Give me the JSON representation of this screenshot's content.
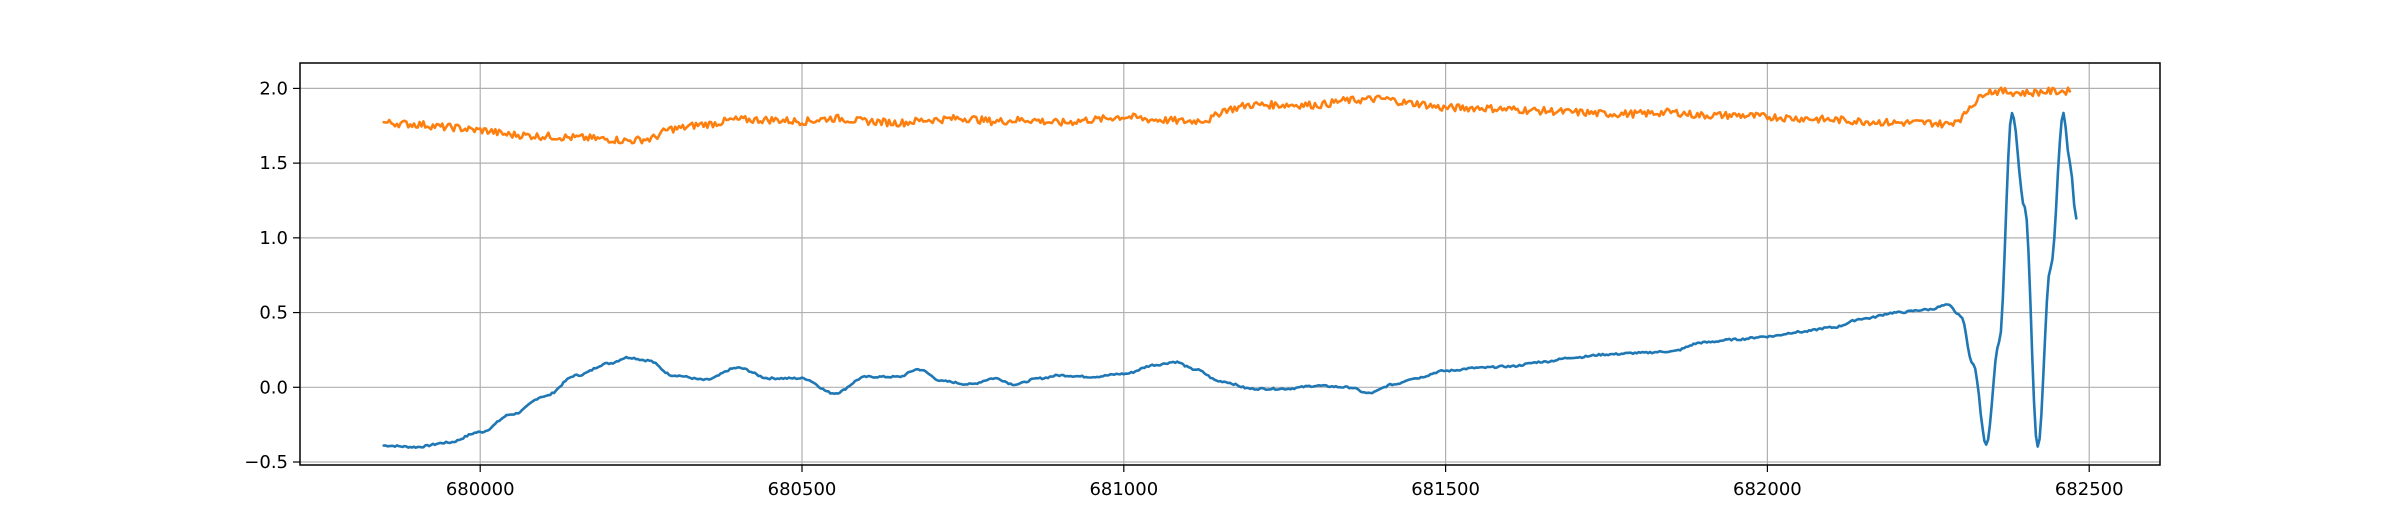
{
  "chart_data": {
    "type": "line",
    "title": "",
    "xlabel": "",
    "ylabel": "",
    "xlim": [
      679720,
      682610
    ],
    "ylim": [
      -0.52,
      2.17
    ],
    "grid": true,
    "legend": "none",
    "x_ticks": [
      680000,
      680500,
      681000,
      681500,
      682000,
      682500
    ],
    "x_tick_labels": [
      "680000",
      "680500",
      "681000",
      "681500",
      "682000",
      "682500"
    ],
    "y_ticks": [
      -0.5,
      0.0,
      0.5,
      1.0,
      1.5,
      2.0
    ],
    "y_tick_labels": [
      "−0.5",
      "0.0",
      "0.5",
      "1.0",
      "1.5",
      "2.0"
    ],
    "series": [
      {
        "color": "#1f77b4",
        "x": [
          679850,
          679900,
          679950,
          680000,
          680050,
          680100,
          680150,
          680200,
          680230,
          680260,
          680300,
          680350,
          680400,
          680450,
          680500,
          680550,
          680600,
          680650,
          680680,
          680720,
          680760,
          680800,
          680830,
          680870,
          680900,
          680950,
          681000,
          681050,
          681080,
          681110,
          681150,
          681200,
          681250,
          681300,
          681350,
          681380,
          681420,
          681450,
          681500,
          681550,
          681600,
          681650,
          681700,
          681750,
          681800,
          681850,
          681900,
          681950,
          682000,
          682050,
          682100,
          682150,
          682200,
          682250,
          682280,
          682300,
          682320,
          682340,
          682360,
          682380,
          682400,
          682420,
          682440,
          682460,
          682470,
          682480
        ],
        "y": [
          -0.39,
          -0.4,
          -0.37,
          -0.3,
          -0.18,
          -0.06,
          0.08,
          0.16,
          0.2,
          0.18,
          0.08,
          0.05,
          0.13,
          0.06,
          0.06,
          -0.04,
          0.07,
          0.07,
          0.12,
          0.04,
          0.02,
          0.06,
          0.02,
          0.06,
          0.08,
          0.07,
          0.09,
          0.15,
          0.17,
          0.12,
          0.04,
          -0.01,
          -0.01,
          0.01,
          0.0,
          -0.04,
          0.02,
          0.06,
          0.11,
          0.13,
          0.14,
          0.17,
          0.2,
          0.22,
          0.23,
          0.24,
          0.3,
          0.32,
          0.34,
          0.37,
          0.4,
          0.46,
          0.5,
          0.52,
          0.55,
          0.48,
          0.15,
          -0.38,
          0.3,
          1.83,
          1.2,
          -0.4,
          0.8,
          1.83,
          1.5,
          1.13
        ]
      },
      {
        "color": "#ff7f0e",
        "x": [
          679850,
          679900,
          679950,
          680000,
          680050,
          680100,
          680150,
          680200,
          680230,
          680260,
          680300,
          680350,
          680400,
          680450,
          680500,
          680550,
          680600,
          680650,
          680700,
          680750,
          680800,
          680850,
          680900,
          680950,
          681000,
          681050,
          681100,
          681130,
          681160,
          681200,
          681250,
          681300,
          681350,
          681400,
          681450,
          681500,
          681550,
          681600,
          681650,
          681700,
          681750,
          681800,
          681850,
          681900,
          681950,
          682000,
          682050,
          682100,
          682150,
          682200,
          682250,
          682280,
          682300,
          682320,
          682340,
          682360,
          682400,
          682440,
          682470
        ],
        "y": [
          1.77,
          1.76,
          1.74,
          1.72,
          1.69,
          1.68,
          1.67,
          1.66,
          1.65,
          1.66,
          1.73,
          1.76,
          1.79,
          1.79,
          1.78,
          1.8,
          1.78,
          1.77,
          1.79,
          1.8,
          1.78,
          1.79,
          1.77,
          1.79,
          1.81,
          1.79,
          1.78,
          1.79,
          1.86,
          1.89,
          1.89,
          1.89,
          1.92,
          1.93,
          1.9,
          1.87,
          1.87,
          1.86,
          1.85,
          1.84,
          1.83,
          1.83,
          1.84,
          1.82,
          1.82,
          1.81,
          1.8,
          1.79,
          1.78,
          1.77,
          1.77,
          1.76,
          1.8,
          1.9,
          1.98,
          1.98,
          1.97,
          1.98,
          1.98
        ]
      }
    ]
  }
}
